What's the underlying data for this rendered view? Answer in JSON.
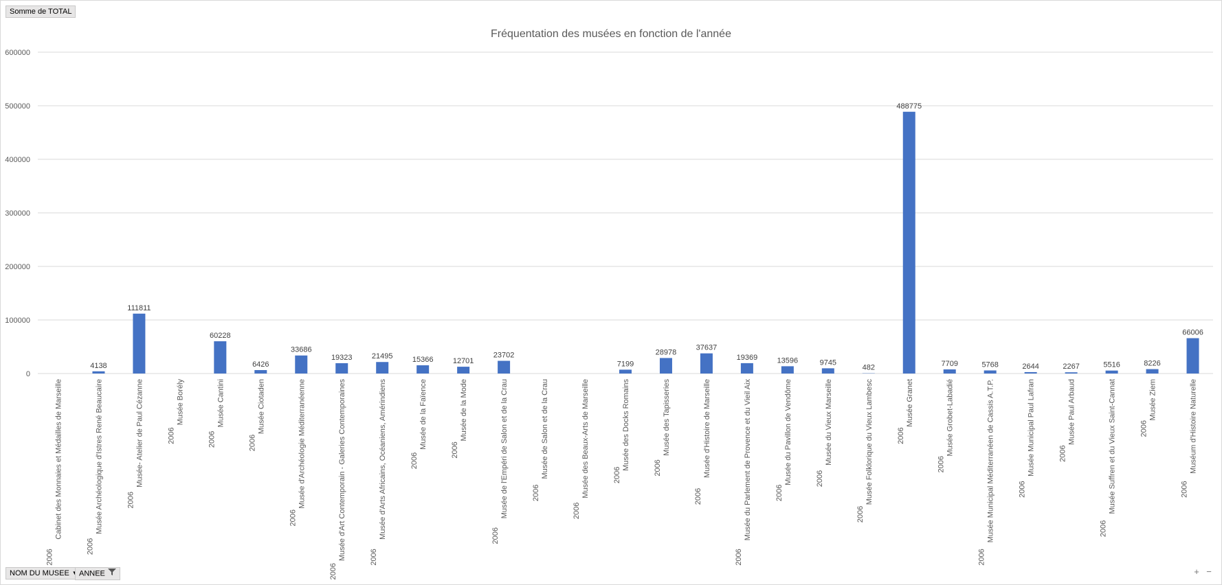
{
  "value_field_button": "Somme  de TOTAL",
  "axis_field_button": "NOM DU MUSEE",
  "axis_field_button_2": "ANNEE",
  "zoom_in": "+",
  "zoom_out": "−",
  "colors": {
    "bar": "#4472c4",
    "grid": "#d9d9d9",
    "text": "#595959",
    "title": "#595959"
  },
  "chart_data": {
    "type": "bar",
    "title": "Fréquentation des musées en fonction de l'année",
    "xlabel": "",
    "ylabel": "",
    "ylim": [
      0,
      600000
    ],
    "yticks": [
      0,
      100000,
      200000,
      300000,
      400000,
      500000,
      600000
    ],
    "grid": true,
    "legend": "none",
    "categories": [
      {
        "year": "2006",
        "name": "Cabinet des Monnaies et Médailles de Marseille"
      },
      {
        "year": "2006",
        "name": "Musée Archéologique d'Istres René Beaucaire"
      },
      {
        "year": "2006",
        "name": "Musée- Atelier de Paul Cézanne"
      },
      {
        "year": "2006",
        "name": "Musée Borély"
      },
      {
        "year": "2006",
        "name": "Musée Cantini"
      },
      {
        "year": "2006",
        "name": "Musée Ciotaden"
      },
      {
        "year": "2006",
        "name": "Musée d'Archéologie Méditerranéenne"
      },
      {
        "year": "2006",
        "name": "Musée d'Art Contemporain - Galeries Contemporaines"
      },
      {
        "year": "2006",
        "name": "Musée d'Arts Africains, Océaniens, Amérindiens"
      },
      {
        "year": "2006",
        "name": "Musée de la Faïence"
      },
      {
        "year": "2006",
        "name": "Musée de la Mode"
      },
      {
        "year": "2006",
        "name": "Musée de l'Empéri de Salon et de la Crau"
      },
      {
        "year": "2006",
        "name": "Musée de Salon et de la Crau"
      },
      {
        "year": "2006",
        "name": "Musée des Beaux-Arts de Marseille"
      },
      {
        "year": "2006",
        "name": "Musée des Docks Romains"
      },
      {
        "year": "2006",
        "name": "Musée des Tapisseries"
      },
      {
        "year": "2006",
        "name": "Musée d'Histoire de Marseille"
      },
      {
        "year": "2006",
        "name": "Musée du Parlement de Provence et du Vieil Aix"
      },
      {
        "year": "2006",
        "name": "Musée du Pavillon de Vendôme"
      },
      {
        "year": "2006",
        "name": "Musée du Vieux Marseille"
      },
      {
        "year": "2006",
        "name": "Musée Folklorique du Vieux Lambesc"
      },
      {
        "year": "2006",
        "name": "Musée Granet"
      },
      {
        "year": "2006",
        "name": "Musée Grobet-Labadié"
      },
      {
        "year": "2006",
        "name": "Musée Municipal Méditerranéen de Cassis A.T.P."
      },
      {
        "year": "2006",
        "name": "Musée Municipal Paul Lafran"
      },
      {
        "year": "2006",
        "name": "Musée Paul Arbaud"
      },
      {
        "year": "2006",
        "name": "Musée Suffren et du Vieux Saint-Cannat"
      },
      {
        "year": "2006",
        "name": "Musée Ziem"
      },
      {
        "year": "2006",
        "name": "Muséum d'Histoire Naturelle"
      }
    ],
    "series": [
      {
        "values": [
          null,
          4138,
          111811,
          null,
          60228,
          6426,
          33686,
          19323,
          21495,
          15366,
          12701,
          23702,
          null,
          null,
          7199,
          28978,
          37637,
          19369,
          13596,
          9745,
          482,
          488775,
          7709,
          5768,
          2644,
          2267,
          5516,
          8226,
          66006
        ],
        "labels": [
          "",
          "4138",
          "111811",
          "",
          "60228",
          "6426",
          "33686",
          "19323",
          "21495",
          "15366",
          "12701",
          "23702",
          "",
          "",
          "7199",
          "28978",
          "37637",
          "19369",
          "13596",
          "9745",
          "482",
          "488775",
          "7709",
          "5768",
          "2644",
          "2267",
          "5516",
          "8226",
          "66006"
        ]
      }
    ]
  }
}
